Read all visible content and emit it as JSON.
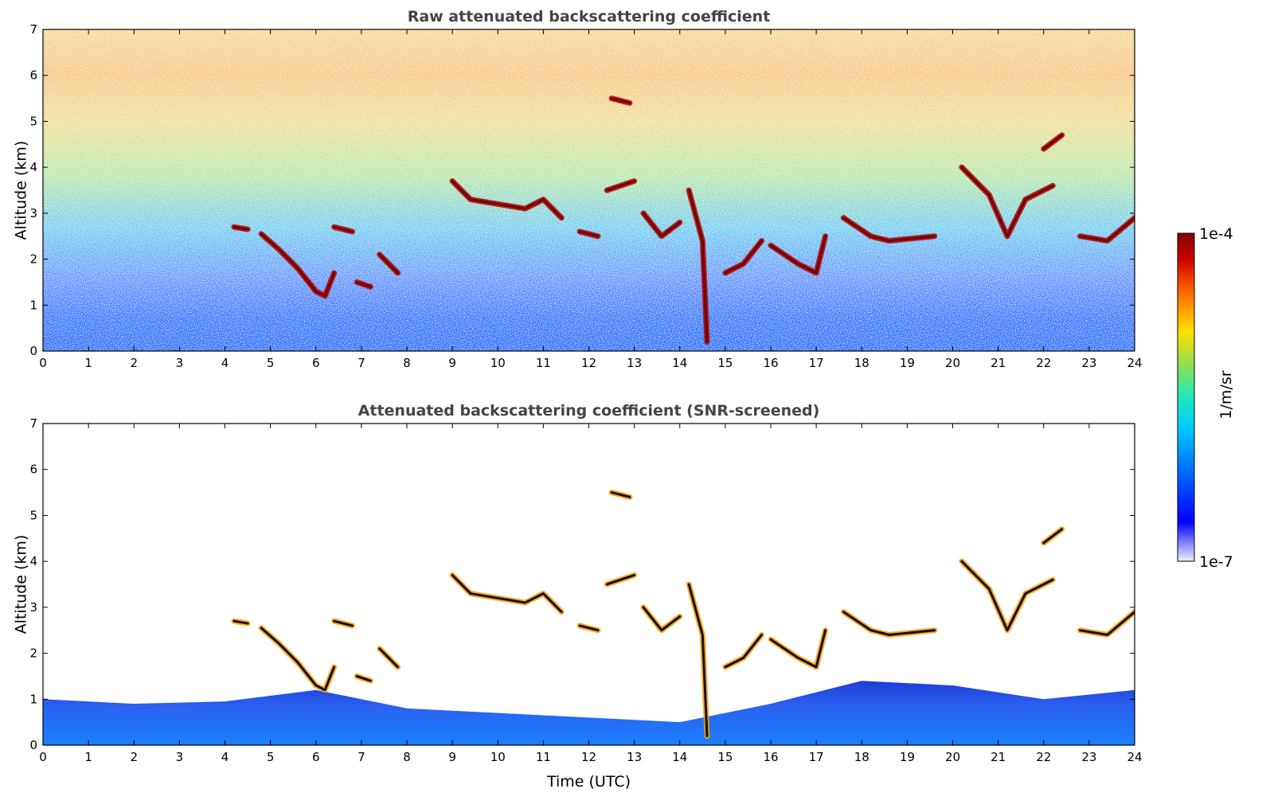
{
  "chart_data": [
    {
      "type": "heatmap",
      "title": "Raw attenuated backscattering coefficient",
      "xlabel": "",
      "ylabel": "Altitude (km)",
      "xlim": [
        0,
        24
      ],
      "ylim": [
        0,
        7
      ],
      "x_ticks": [
        "0",
        "1",
        "2",
        "3",
        "4",
        "5",
        "6",
        "7",
        "8",
        "9",
        "10",
        "11",
        "12",
        "13",
        "14",
        "15",
        "16",
        "17",
        "18",
        "19",
        "20",
        "21",
        "22",
        "23",
        "24"
      ],
      "y_ticks": [
        "0",
        "1",
        "2",
        "3",
        "4",
        "5",
        "6",
        "7"
      ],
      "layers": [
        {
          "kind": "cloud",
          "points": [
            [
              4.2,
              2.7
            ],
            [
              4.5,
              2.65
            ]
          ]
        },
        {
          "kind": "cloud",
          "points": [
            [
              4.8,
              2.55
            ],
            [
              5.2,
              2.2
            ],
            [
              5.6,
              1.8
            ],
            [
              6.0,
              1.3
            ],
            [
              6.2,
              1.2
            ],
            [
              6.4,
              1.7
            ]
          ]
        },
        {
          "kind": "cloud",
          "points": [
            [
              6.4,
              2.7
            ],
            [
              6.8,
              2.6
            ]
          ]
        },
        {
          "kind": "cloud",
          "points": [
            [
              6.9,
              1.5
            ],
            [
              7.2,
              1.4
            ]
          ]
        },
        {
          "kind": "cloud",
          "points": [
            [
              7.4,
              2.1
            ],
            [
              7.6,
              1.9
            ],
            [
              7.8,
              1.7
            ]
          ]
        },
        {
          "kind": "cloud",
          "points": [
            [
              9.0,
              3.7
            ],
            [
              9.4,
              3.3
            ],
            [
              10.0,
              3.2
            ],
            [
              10.6,
              3.1
            ],
            [
              11.0,
              3.3
            ],
            [
              11.4,
              2.9
            ]
          ]
        },
        {
          "kind": "cloud",
          "points": [
            [
              11.8,
              2.6
            ],
            [
              12.2,
              2.5
            ]
          ]
        },
        {
          "kind": "cloud",
          "points": [
            [
              12.4,
              3.5
            ],
            [
              13.0,
              3.7
            ]
          ]
        },
        {
          "kind": "cloud",
          "points": [
            [
              13.2,
              3.0
            ],
            [
              13.6,
              2.5
            ],
            [
              14.0,
              2.8
            ]
          ]
        },
        {
          "kind": "cloud",
          "points": [
            [
              14.2,
              3.5
            ],
            [
              14.5,
              2.4
            ],
            [
              14.6,
              0.2
            ]
          ]
        },
        {
          "kind": "cloud",
          "points": [
            [
              15.0,
              1.7
            ],
            [
              15.4,
              1.9
            ],
            [
              15.8,
              2.4
            ]
          ]
        },
        {
          "kind": "cloud",
          "points": [
            [
              16.0,
              2.3
            ],
            [
              16.6,
              1.9
            ],
            [
              17.0,
              1.7
            ],
            [
              17.2,
              2.5
            ]
          ]
        },
        {
          "kind": "cloud",
          "points": [
            [
              17.6,
              2.9
            ],
            [
              18.2,
              2.5
            ],
            [
              18.6,
              2.4
            ],
            [
              19.6,
              2.5
            ]
          ]
        },
        {
          "kind": "cloud",
          "points": [
            [
              20.2,
              4.0
            ],
            [
              20.8,
              3.4
            ],
            [
              21.2,
              2.5
            ],
            [
              21.6,
              3.3
            ],
            [
              22.2,
              3.6
            ]
          ]
        },
        {
          "kind": "cloud",
          "points": [
            [
              22.0,
              4.4
            ],
            [
              22.4,
              4.7
            ]
          ]
        },
        {
          "kind": "cloud",
          "points": [
            [
              22.8,
              2.5
            ],
            [
              23.4,
              2.4
            ],
            [
              24.0,
              2.9
            ]
          ]
        },
        {
          "kind": "cloud",
          "points": [
            [
              12.5,
              5.5
            ],
            [
              12.9,
              5.4
            ]
          ]
        }
      ]
    },
    {
      "type": "heatmap",
      "title": "Attenuated backscattering coefficient (SNR-screened)",
      "xlabel": "Time (UTC)",
      "ylabel": "Altitude (km)",
      "xlim": [
        0,
        24
      ],
      "ylim": [
        0,
        7
      ],
      "x_ticks": [
        "0",
        "1",
        "2",
        "3",
        "4",
        "5",
        "6",
        "7",
        "8",
        "9",
        "10",
        "11",
        "12",
        "13",
        "14",
        "15",
        "16",
        "17",
        "18",
        "19",
        "20",
        "21",
        "22",
        "23",
        "24"
      ],
      "y_ticks": [
        "0",
        "1",
        "2",
        "3",
        "4",
        "5",
        "6",
        "7"
      ]
    }
  ],
  "colorbar": {
    "label": "1/m/sr",
    "max_label": "1e-4",
    "min_label": "1e-7",
    "scale": "log",
    "range": [
      1e-07,
      0.0001
    ],
    "colormap": [
      "#e6e6ff",
      "#0000ff",
      "#00a0ff",
      "#00e0e0",
      "#80e060",
      "#ffe000",
      "#ff8000",
      "#e00000",
      "#800000"
    ]
  }
}
